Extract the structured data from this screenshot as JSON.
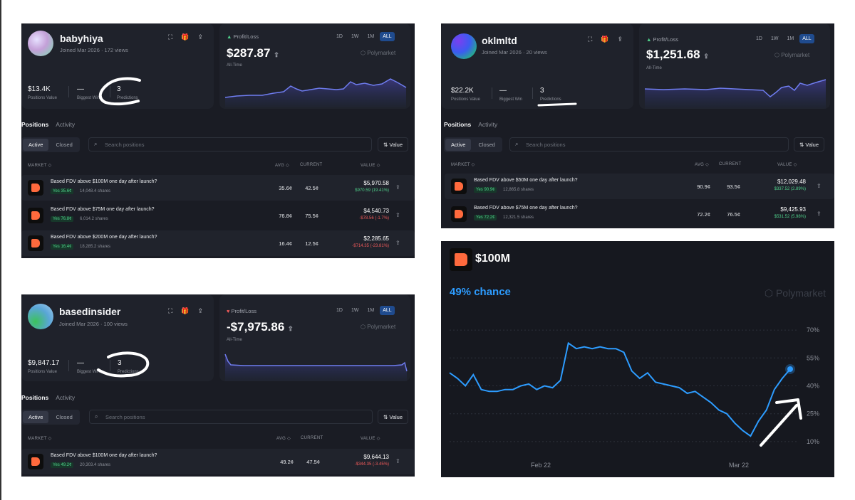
{
  "profiles": [
    {
      "username": "babyhiya",
      "joined": "Joined Mar 2026",
      "views": "172 views",
      "positions_value": "$13.4K",
      "positions_value_label": "Positions Value",
      "biggest_win": "—",
      "biggest_win_label": "Biggest Win",
      "predictions": "3",
      "predictions_label": "Predictions",
      "pl_label": "Profit/Loss",
      "pl_value": "$287.87",
      "pl_period": "All-Time",
      "pl_trend": "up",
      "ranges": [
        "1D",
        "1W",
        "1M",
        "ALL"
      ],
      "range_selected": "ALL",
      "brand": "Polymarket",
      "tabs": [
        "Positions",
        "Activity"
      ],
      "filters": [
        "Active",
        "Closed"
      ],
      "search_placeholder": "Search positions",
      "sort_label": "Value",
      "columns": [
        "MARKET",
        "AVG",
        "CURRENT",
        "VALUE"
      ],
      "positions": [
        {
          "title": "Based FDV above $100M one day after launch?",
          "badge": "Yes 35.6¢",
          "shares": "14,048.4 shares",
          "avg": "35.6¢",
          "current": "42.5¢",
          "value": "$5,970.58",
          "pnl": "$970.59 (19.41%)",
          "pnl_sign": "pos"
        },
        {
          "title": "Based FDV above $75M one day after launch?",
          "badge": "Yes 76.8¢",
          "shares": "6,014.2 shares",
          "avg": "76.8¢",
          "current": "75.5¢",
          "value": "$4,540.73",
          "pnl": "-$78.56 (-1.7%)",
          "pnl_sign": "neg"
        },
        {
          "title": "Based FDV above $200M one day after launch?",
          "badge": "Yes 16.4¢",
          "shares": "18,285.2 shares",
          "avg": "16.4¢",
          "current": "12.5¢",
          "value": "$2,285.65",
          "pnl": "-$714.35 (-23.81%)",
          "pnl_sign": "neg"
        }
      ]
    },
    {
      "username": "oklmltd",
      "joined": "Joined Mar 2026",
      "views": "20 views",
      "positions_value": "$22.2K",
      "positions_value_label": "Positions Value",
      "biggest_win": "—",
      "biggest_win_label": "Biggest Win",
      "predictions": "3",
      "predictions_label": "Predictions",
      "pl_label": "Profit/Loss",
      "pl_value": "$1,251.68",
      "pl_period": "All-Time",
      "pl_trend": "up",
      "ranges": [
        "1D",
        "1W",
        "1M",
        "ALL"
      ],
      "range_selected": "ALL",
      "brand": "Polymarket",
      "tabs": [
        "Positions",
        "Activity"
      ],
      "filters": [
        "Active",
        "Closed"
      ],
      "search_placeholder": "Search positions",
      "sort_label": "Value",
      "columns": [
        "MARKET",
        "AVG",
        "CURRENT",
        "VALUE"
      ],
      "positions": [
        {
          "title": "Based FDV above $50M one day after launch?",
          "badge": "Yes 90.9¢",
          "shares": "12,865.8 shares",
          "avg": "90.9¢",
          "current": "93.5¢",
          "value": "$12,029.48",
          "pnl": "$337.52 (2.89%)",
          "pnl_sign": "pos"
        },
        {
          "title": "Based FDV above $75M one day after launch?",
          "badge": "Yes 72.2¢",
          "shares": "12,321.5 shares",
          "avg": "72.2¢",
          "current": "76.5¢",
          "value": "$9,425.93",
          "pnl": "$531.52 (5.98%)",
          "pnl_sign": "pos"
        }
      ]
    },
    {
      "username": "basedinsider",
      "joined": "Joined Mar 2026",
      "views": "100 views",
      "positions_value": "$9,847.17",
      "positions_value_label": "Positions Value",
      "biggest_win": "—",
      "biggest_win_label": "Biggest Win",
      "predictions": "3",
      "predictions_label": "Predictions",
      "pl_label": "Profit/Loss",
      "pl_value": "-$7,975.86",
      "pl_period": "All-Time",
      "pl_trend": "down",
      "ranges": [
        "1D",
        "1W",
        "1M",
        "ALL"
      ],
      "range_selected": "ALL",
      "brand": "Polymarket",
      "tabs": [
        "Positions",
        "Activity"
      ],
      "filters": [
        "Active",
        "Closed"
      ],
      "search_placeholder": "Search positions",
      "sort_label": "Value",
      "columns": [
        "MARKET",
        "AVG",
        "CURRENT",
        "VALUE"
      ],
      "positions": [
        {
          "title": "Based FDV above $100M one day after launch?",
          "badge": "Yes 49.2¢",
          "shares": "20,303.4 shares",
          "avg": "49.2¢",
          "current": "47.5¢",
          "value": "$9,644.13",
          "pnl": "-$344.35 (-3.45%)",
          "pnl_sign": "neg"
        }
      ]
    }
  ],
  "market": {
    "title": "$100M",
    "chance": "49% chance",
    "brand": "Polymarket"
  },
  "chart_data": {
    "type": "line",
    "title": "",
    "xlabel": "",
    "ylabel": "",
    "x_ticks": [
      "Feb 22",
      "Mar 22"
    ],
    "y_ticks": [
      "70%",
      "55%",
      "40%",
      "25%",
      "10%"
    ],
    "ylim": [
      5,
      75
    ],
    "series": [
      {
        "color": "#2d9cff",
        "values": [
          47,
          44,
          40,
          46,
          38,
          37,
          37,
          38,
          38,
          40,
          41,
          38,
          40,
          39,
          43,
          63,
          60,
          61,
          60,
          61,
          60,
          60,
          58,
          48,
          44,
          47,
          42,
          41,
          40,
          39,
          36,
          37,
          34,
          31,
          27,
          25,
          20,
          16,
          13,
          21,
          27,
          38,
          44,
          49
        ]
      }
    ]
  }
}
